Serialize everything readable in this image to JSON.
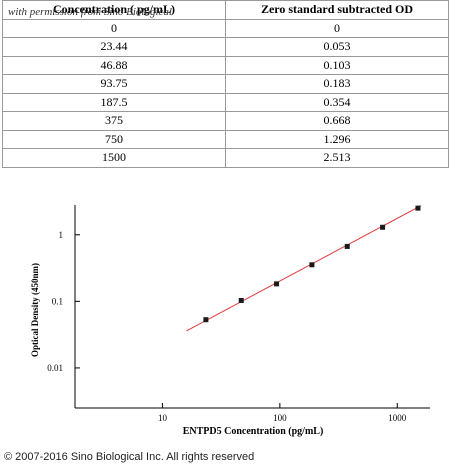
{
  "watermark": "with permission from Sino Biological",
  "table": {
    "header": [
      "Concentration ( pg/mL)",
      "Zero standard subtracted OD"
    ],
    "rows": [
      [
        "0",
        "0"
      ],
      [
        "23.44",
        "0.053"
      ],
      [
        "46.88",
        "0.103"
      ],
      [
        "93.75",
        "0.183"
      ],
      [
        "187.5",
        "0.354"
      ],
      [
        "375",
        "0.668"
      ],
      [
        "750",
        "1.296"
      ],
      [
        "1500",
        "2.513"
      ]
    ]
  },
  "chart_data": {
    "type": "scatter",
    "x": [
      23.44,
      46.88,
      93.75,
      187.5,
      375,
      750,
      1500
    ],
    "values": [
      0.053,
      0.103,
      0.183,
      0.354,
      0.668,
      1.296,
      2.513
    ],
    "color": "#1a1a1a",
    "fit_line": {
      "x": [
        16,
        1600
      ],
      "values": [
        0.036,
        2.75
      ],
      "color": "#e03a3a"
    },
    "xlabel": "ENTPD5 Concentration (pg/mL)",
    "ylabel": "Optical Density (450nm)",
    "xscale": "log",
    "yscale": "log",
    "xlim": [
      1.8,
      1900
    ],
    "ylim": [
      0.0025,
      2.8
    ],
    "xticks": [
      10,
      100,
      1000
    ],
    "yticks": [
      0.01,
      0.1,
      1
    ]
  },
  "footer": "© 2007-2016 Sino Biological Inc. All rights reserved"
}
